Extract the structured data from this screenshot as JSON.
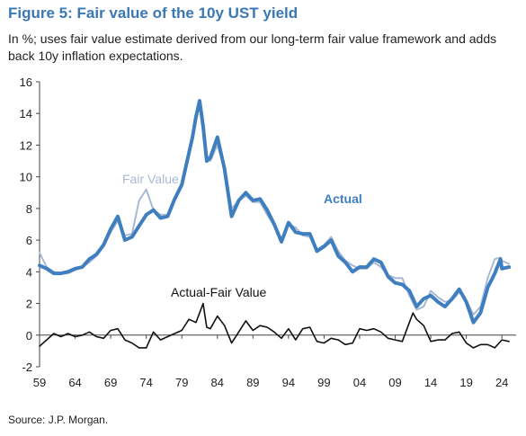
{
  "chart_data": {
    "type": "line",
    "title": "Figure 5: Fair value of the 10y UST yield",
    "subtitle": "In %; uses fair value estimate derived from our long-term fair value framework and adds back 10y inflation expectations.",
    "source": "Source: J.P. Morgan.",
    "xlabel": "",
    "ylabel": "",
    "xlim": [
      1959,
      2026
    ],
    "ylim": [
      -2,
      16
    ],
    "yticks": [
      -2,
      0,
      2,
      4,
      6,
      8,
      10,
      12,
      14,
      16
    ],
    "xtick_labels": [
      "59",
      "64",
      "69",
      "74",
      "79",
      "84",
      "89",
      "94",
      "99",
      "04",
      "09",
      "14",
      "19",
      "24"
    ],
    "xtick_years": [
      1959,
      1964,
      1969,
      1974,
      1979,
      1984,
      1989,
      1994,
      1999,
      2004,
      2009,
      2014,
      2019,
      2024
    ],
    "grid": false,
    "annotations": [
      {
        "text": "Fair Value",
        "color": "#a9b9d4"
      },
      {
        "text": "Actual",
        "color": "#3f7fbf"
      },
      {
        "text": "Actual-Fair Value",
        "color": "#111111"
      }
    ],
    "series": [
      {
        "name": "Actual",
        "color": "#3f7fbf",
        "x": [
          1959,
          1960,
          1961,
          1962,
          1963,
          1964,
          1965,
          1966,
          1967,
          1968,
          1969,
          1970,
          1971,
          1972,
          1973,
          1974,
          1975,
          1976,
          1977,
          1978,
          1979,
          1980,
          1980.5,
          1981,
          1981.5,
          1982,
          1982.5,
          1983,
          1984,
          1985,
          1986,
          1987,
          1988,
          1989,
          1990,
          1991,
          1992,
          1993,
          1994,
          1995,
          1996,
          1997,
          1998,
          1999,
          2000,
          2001,
          2002,
          2003,
          2004,
          2005,
          2006,
          2007,
          2008,
          2009,
          2010,
          2011,
          2012,
          2013,
          2014,
          2015,
          2016,
          2017,
          2018,
          2019,
          2020,
          2021,
          2022,
          2023,
          2023.8,
          2024,
          2025
        ],
        "y": [
          4.4,
          4.2,
          3.9,
          3.9,
          4.0,
          4.2,
          4.3,
          4.8,
          5.1,
          5.7,
          6.7,
          7.5,
          6.0,
          6.2,
          6.9,
          7.6,
          7.9,
          7.4,
          7.5,
          8.6,
          9.5,
          11.5,
          12.5,
          13.8,
          14.8,
          13.2,
          11.0,
          11.2,
          12.5,
          10.5,
          7.5,
          8.5,
          9.0,
          8.5,
          8.6,
          7.9,
          7.0,
          5.9,
          7.1,
          6.5,
          6.4,
          6.4,
          5.3,
          5.6,
          6.0,
          5.0,
          4.6,
          4.0,
          4.3,
          4.3,
          4.8,
          4.6,
          3.7,
          3.3,
          3.2,
          2.8,
          1.8,
          2.3,
          2.5,
          2.1,
          1.8,
          2.3,
          2.9,
          2.1,
          0.8,
          1.4,
          3.0,
          3.9,
          4.8,
          4.2,
          4.3
        ]
      },
      {
        "name": "Fair Value",
        "color": "#a9b9d4",
        "x": [
          1959,
          1960,
          1961,
          1962,
          1963,
          1964,
          1965,
          1966,
          1967,
          1968,
          1969,
          1970,
          1971,
          1972,
          1973,
          1974,
          1975,
          1976,
          1977,
          1978,
          1979,
          1980,
          1980.5,
          1981,
          1981.5,
          1982,
          1982.5,
          1983,
          1984,
          1985,
          1986,
          1987,
          1988,
          1989,
          1990,
          1991,
          1992,
          1993,
          1994,
          1995,
          1996,
          1997,
          1998,
          1999,
          2000,
          2001,
          2002,
          2003,
          2004,
          2005,
          2006,
          2007,
          2008,
          2009,
          2010,
          2011,
          2012,
          2013,
          2014,
          2015,
          2016,
          2017,
          2018,
          2019,
          2020,
          2021,
          2022,
          2023,
          2023.8,
          2024,
          2025
        ],
        "y": [
          5.2,
          4.3,
          4.0,
          3.9,
          3.9,
          4.1,
          4.3,
          4.6,
          5.0,
          5.6,
          6.5,
          7.2,
          6.3,
          6.4,
          8.5,
          9.2,
          7.9,
          7.6,
          7.6,
          8.5,
          9.4,
          11.3,
          12.8,
          13.5,
          14.6,
          13.0,
          11.4,
          11.0,
          12.0,
          10.5,
          8.0,
          8.5,
          8.8,
          8.4,
          8.4,
          7.6,
          6.9,
          6.1,
          7.0,
          6.8,
          6.3,
          6.2,
          5.4,
          5.7,
          6.2,
          5.3,
          4.7,
          4.4,
          4.2,
          4.2,
          4.6,
          4.3,
          3.8,
          3.6,
          3.6,
          2.5,
          1.6,
          1.8,
          2.8,
          2.4,
          2.1,
          2.2,
          2.7,
          2.2,
          1.3,
          1.8,
          3.6,
          4.8,
          4.9,
          4.7,
          4.5
        ]
      },
      {
        "name": "Actual-Fair Value",
        "color": "#111111",
        "x": [
          1959,
          1960,
          1961,
          1962,
          1963,
          1964,
          1965,
          1966,
          1967,
          1968,
          1969,
          1970,
          1971,
          1972,
          1973,
          1974,
          1975,
          1976,
          1977,
          1978,
          1979,
          1980,
          1981,
          1982,
          1982.5,
          1983,
          1984,
          1985,
          1986,
          1987,
          1988,
          1989,
          1990,
          1991,
          1992,
          1993,
          1994,
          1995,
          1996,
          1997,
          1998,
          1999,
          2000,
          2001,
          2002,
          2003,
          2004,
          2005,
          2006,
          2007,
          2008,
          2009,
          2010,
          2011,
          2011.5,
          2012,
          2013,
          2014,
          2015,
          2016,
          2017,
          2018,
          2019,
          2020,
          2021,
          2022,
          2023,
          2024,
          2025
        ],
        "y": [
          -0.7,
          -0.3,
          0.1,
          -0.1,
          0.1,
          -0.1,
          0.0,
          0.2,
          -0.1,
          -0.2,
          0.3,
          0.4,
          -0.3,
          -0.5,
          -0.8,
          -0.8,
          0.2,
          -0.3,
          -0.1,
          0.1,
          0.3,
          1.0,
          0.8,
          2.0,
          0.5,
          0.4,
          1.2,
          0.6,
          -0.5,
          0.2,
          0.9,
          0.3,
          0.6,
          0.5,
          0.2,
          -0.2,
          0.4,
          -0.3,
          0.4,
          0.5,
          -0.4,
          -0.5,
          -0.2,
          -0.3,
          -0.6,
          -0.5,
          0.4,
          0.3,
          0.4,
          0.2,
          -0.2,
          -0.3,
          -0.4,
          0.8,
          1.4,
          1.0,
          0.6,
          -0.4,
          -0.3,
          -0.3,
          0.1,
          0.2,
          -0.5,
          -0.8,
          -0.6,
          -0.6,
          -0.8,
          -0.3,
          -0.4
        ]
      }
    ]
  }
}
